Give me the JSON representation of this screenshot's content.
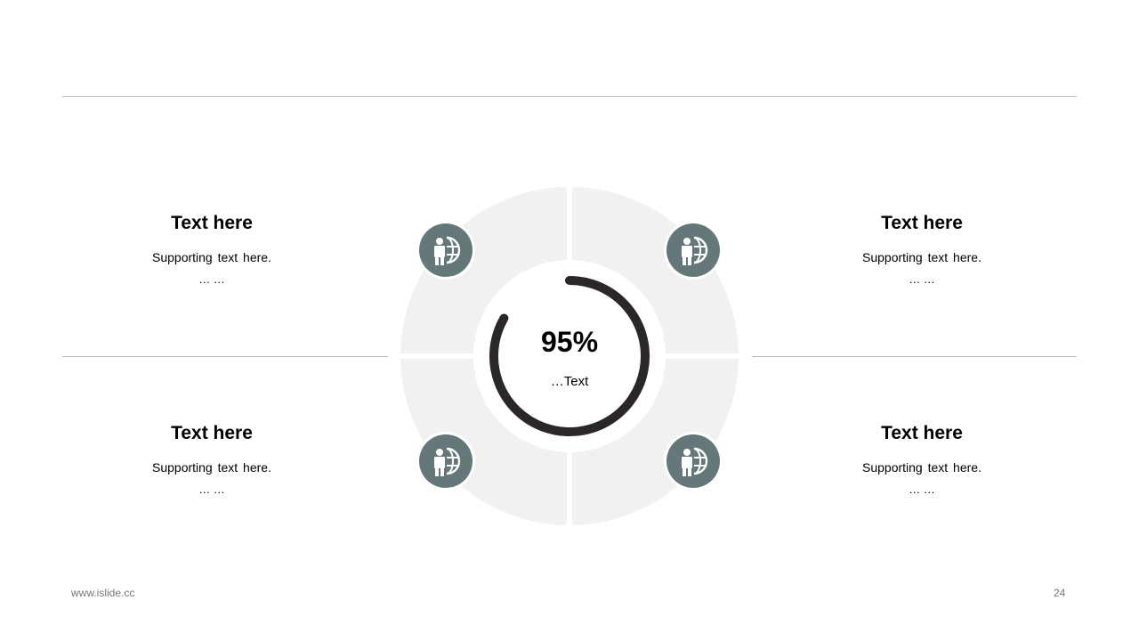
{
  "center": {
    "value": "95%",
    "label": "…Text",
    "progress_percent": 95
  },
  "blocks": [
    {
      "title": "Text here",
      "subtitle": "Supporting  text here.",
      "dots": "… …",
      "icon": "businessman-globe-icon"
    },
    {
      "title": "Text here",
      "subtitle": "Supporting  text here.",
      "dots": "… …",
      "icon": "businessman-globe-icon"
    },
    {
      "title": "Text here",
      "subtitle": "Supporting  text here.",
      "dots": "… …",
      "icon": "businessman-globe-icon"
    },
    {
      "title": "Text here",
      "subtitle": "Supporting  text here.",
      "dots": "… …",
      "icon": "businessman-globe-icon"
    }
  ],
  "footer": {
    "website": "www.islide.cc",
    "page_number": "24"
  },
  "colors": {
    "icon_bg": "#64787a",
    "ring": "#f1f1f1",
    "arc": "#2b2727",
    "rule": "#bdbdbd"
  }
}
